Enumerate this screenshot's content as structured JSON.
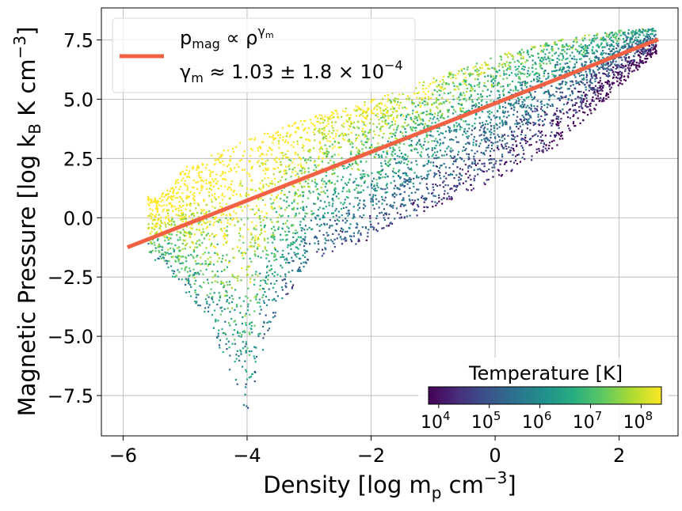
{
  "chart_data": {
    "type": "scatter",
    "xlabel": {
      "main": "Density [log m",
      "sub": "p",
      "unit": " cm",
      "sup": "−3",
      "close": "]"
    },
    "ylabel": {
      "main": "Magnetic Pressure [log k",
      "sub": "B",
      "unit": " K cm",
      "sup": "−3",
      "close": "]"
    },
    "xlim": [
      -6.35,
      2.95
    ],
    "ylim": [
      -9.2,
      8.85
    ],
    "x_ticks": [
      -6,
      -4,
      -2,
      0,
      2
    ],
    "x_tick_labels": [
      "−6",
      "−4",
      "−2",
      "0",
      "2"
    ],
    "y_ticks": [
      -7.5,
      -5.0,
      -2.5,
      0.0,
      2.5,
      5.0,
      7.5
    ],
    "y_tick_labels": [
      "−7.5",
      "−5.0",
      "−2.5",
      "0.0",
      "2.5",
      "5.0",
      "7.5"
    ],
    "grid": true,
    "fit_line": {
      "color": "#f26144",
      "points": [
        [
          -5.93,
          -1.25
        ],
        [
          2.63,
          7.52
        ]
      ],
      "legend_line1": {
        "p": "p",
        "sub": "mag",
        "rel": " ∝ ρ",
        "sup": "γ",
        "supsub": "m"
      },
      "legend_line2": {
        "g": "γ",
        "sub": "m",
        "rest": " ≈ 1.03 ± 1.8 × 10",
        "sup": "−4"
      }
    },
    "legend_placement": "upper left",
    "colorbar": {
      "title": "Temperature [K]",
      "colormap": "viridis",
      "log_range": [
        3.8,
        8.4
      ],
      "tick_exponents": [
        4,
        5,
        6,
        7,
        8
      ],
      "tick_base": "10",
      "placement": "lower right"
    },
    "scatter_cloud": {
      "x_range": [
        -5.6,
        2.6
      ],
      "upper_envelope": [
        [
          -5.4,
          0.9
        ],
        [
          -5.1,
          2.0
        ],
        [
          -4.0,
          3.3
        ],
        [
          -3.0,
          4.2
        ],
        [
          -2.0,
          5.0
        ],
        [
          -1.0,
          5.9
        ],
        [
          0.0,
          6.8
        ],
        [
          1.0,
          7.5
        ],
        [
          2.0,
          7.9
        ],
        [
          2.6,
          8.0
        ]
      ],
      "lower_envelope": [
        [
          -5.4,
          -1.8
        ],
        [
          -4.6,
          -4.6
        ],
        [
          -4.0,
          -8.3
        ],
        [
          -3.6,
          -4.5
        ],
        [
          -3.0,
          -1.8
        ],
        [
          -2.0,
          -0.9
        ],
        [
          -1.0,
          0.4
        ],
        [
          0.0,
          1.6
        ],
        [
          1.0,
          3.0
        ],
        [
          2.0,
          5.5
        ],
        [
          2.6,
          6.9
        ]
      ],
      "colors": [
        "#440154",
        "#472d7b",
        "#3b528b",
        "#2c728e",
        "#21918c",
        "#28ae80",
        "#5ec962",
        "#addc30",
        "#fde725"
      ]
    }
  }
}
